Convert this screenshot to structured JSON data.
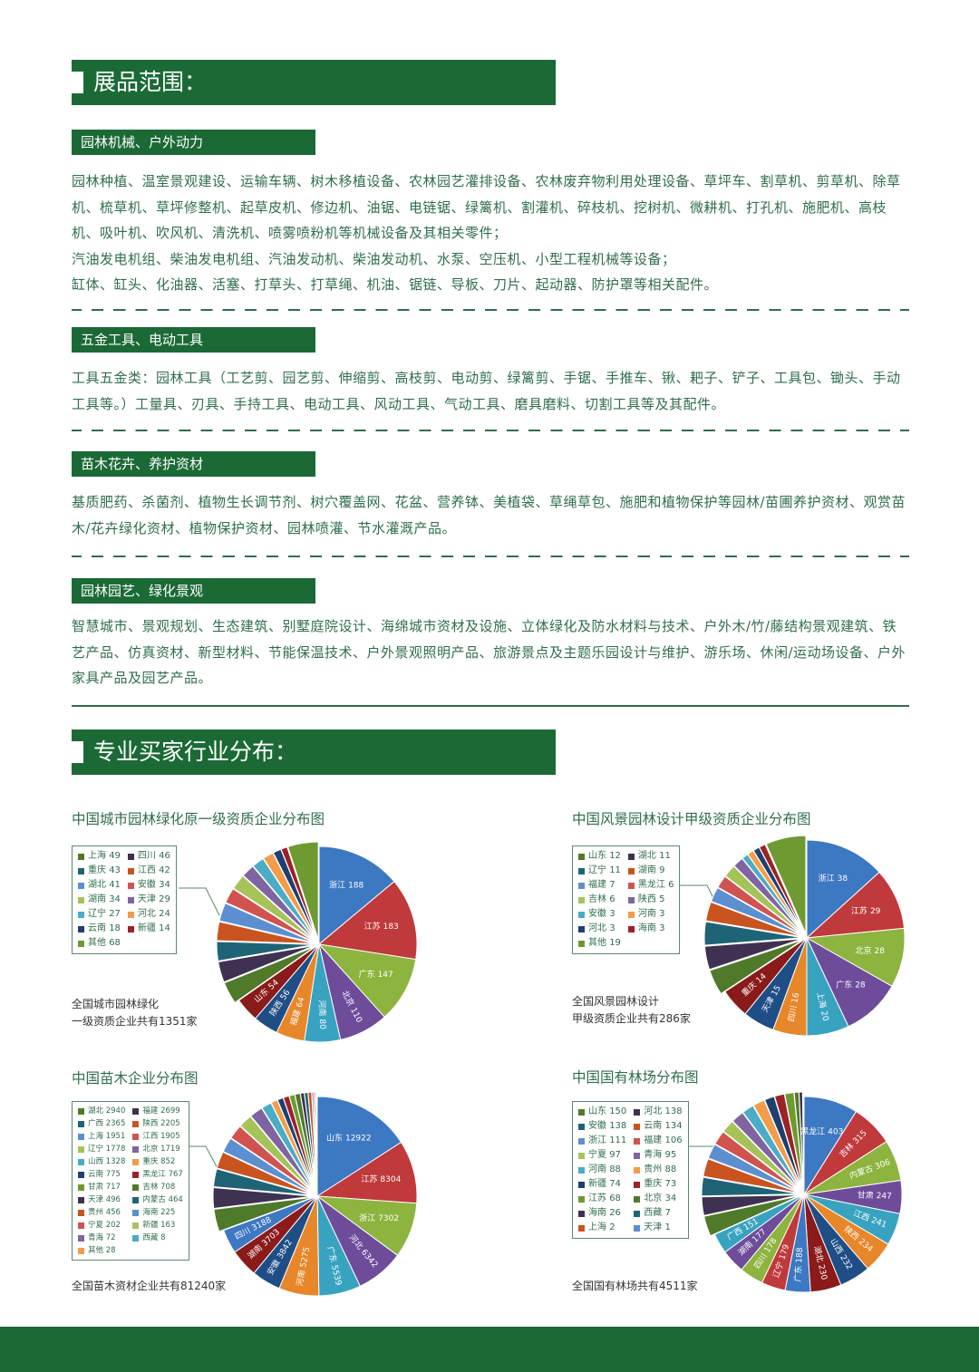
{
  "exhibit_section": {
    "title": "展品范围：",
    "categories": [
      {
        "title": "园林机械、户外动力",
        "lines": [
          "园林种植、温室景观建设、运输车辆、树木移植设备、农林园艺灌排设备、农林废弃物利用处理设备、草坪车、割草机、剪草机、除草机、梳草机、草坪修整机、起草皮机、修边机、油锯、电链锯、绿篱机、割灌机、碎枝机、挖树机、微耕机、打孔机、施肥机、高枝机、吸叶机、吹风机、清洗机、喷雾喷粉机等机械设备及其相关零件；",
          "汽油发电机组、柴油发电机组、汽油发动机、柴油发动机、水泵、空压机、小型工程机械等设备；",
          "缸体、缸头、化油器、活塞、打草头、打草绳、机油、锯链、导板、刀片、起动器、防护罩等相关配件。"
        ]
      },
      {
        "title": "五金工具、电动工具",
        "lines": [
          "工具五金类：园林工具（工艺剪、园艺剪、伸缩剪、高枝剪、电动剪、绿篱剪、手锯、手推车、锹、耙子、铲子、工具包、锄头、手动工具等。）工量具、刃具、手持工具、电动工具、风动工具、气动工具、磨具磨料、切割工具等及其配件。"
        ]
      },
      {
        "title": "苗木花卉、养护资材",
        "lines": [
          "基质肥药、杀菌剂、植物生长调节剂、树穴覆盖网、花盆、营养钵、美植袋、草绳草包、施肥和植物保护等园林/苗圃养护资材、观赏苗木/花卉绿化资材、植物保护资材、园林喷灌、节水灌溉产品。"
        ]
      },
      {
        "title": "园林园艺、绿化景观",
        "lines": [
          "智慧城市、景观规划、生态建筑、别墅庭院设计、海绵城市资材及设施、立体绿化及防水材料与技术、户外木/竹/藤结构景观建筑、铁艺产品、仿真资材、新型材料、节能保温技术、户外景观照明产品、旅游景点及主题乐园设计与维护、游乐场、休闲/运动场设备、户外家具产品及园艺产品。"
        ]
      }
    ]
  },
  "buyer_section": {
    "title": "专业买家行业分布："
  },
  "theme_colors": {
    "brand_green": "#1b6a36",
    "text_green": "#2f6e4c"
  },
  "chart_data": [
    {
      "type": "pie",
      "title": "中国城市园林绿化原一级资质企业分布图",
      "caption": [
        "全国城市园林绿化",
        "一级资质企业共有1351家"
      ],
      "labeled_slices": [
        [
          "浙江",
          188
        ],
        [
          "江苏",
          183
        ],
        [
          "广东",
          147
        ],
        [
          "北京",
          110
        ],
        [
          "河南",
          80
        ],
        [
          "福建",
          64
        ],
        [
          "陕西",
          56
        ],
        [
          "山东",
          54
        ]
      ],
      "legend_slices": [
        [
          "上海",
          49
        ],
        [
          "四川",
          46
        ],
        [
          "重庆",
          43
        ],
        [
          "江西",
          42
        ],
        [
          "湖北",
          41
        ],
        [
          "安徽",
          34
        ],
        [
          "湖南",
          34
        ],
        [
          "天津",
          29
        ],
        [
          "辽宁",
          27
        ],
        [
          "河北",
          24
        ],
        [
          "云南",
          18
        ],
        [
          "新疆",
          14
        ],
        [
          "其他",
          68
        ]
      ]
    },
    {
      "type": "pie",
      "title": "中国风景园林设计甲级资质企业分布图",
      "caption": [
        "全国风景园林设计",
        "甲级资质企业共有286家"
      ],
      "labeled_slices": [
        [
          "浙江",
          38
        ],
        [
          "江苏",
          29
        ],
        [
          "北京",
          28
        ],
        [
          "广东",
          28
        ],
        [
          "上海",
          20
        ],
        [
          "四川",
          16
        ],
        [
          "天津",
          15
        ],
        [
          "重庆",
          14
        ]
      ],
      "legend_slices": [
        [
          "山东",
          12
        ],
        [
          "湖北",
          11
        ],
        [
          "辽宁",
          11
        ],
        [
          "湖南",
          9
        ],
        [
          "福建",
          7
        ],
        [
          "黑龙江",
          6
        ],
        [
          "吉林",
          6
        ],
        [
          "陕西",
          5
        ],
        [
          "安徽",
          3
        ],
        [
          "河南",
          3
        ],
        [
          "河北",
          3
        ],
        [
          "海南",
          3
        ],
        [
          "其他",
          19
        ]
      ]
    },
    {
      "type": "pie",
      "title": "中国苗木企业分布图",
      "caption": [
        "全国苗木资材企业共有81240家"
      ],
      "labeled_slices": [
        [
          "山东",
          12922
        ],
        [
          "江苏",
          8304
        ],
        [
          "浙江",
          7302
        ],
        [
          "河北",
          6342
        ],
        [
          "广东",
          5539
        ],
        [
          "河南",
          5275
        ],
        [
          "安徽",
          3842
        ],
        [
          "湖南",
          3703
        ],
        [
          "四川",
          3188
        ]
      ],
      "legend_slices": [
        [
          "湖北",
          2940
        ],
        [
          "福建",
          2699
        ],
        [
          "广西",
          2365
        ],
        [
          "陕西",
          2205
        ],
        [
          "上海",
          1951
        ],
        [
          "江西",
          1905
        ],
        [
          "辽宁",
          1778
        ],
        [
          "北京",
          1719
        ],
        [
          "山西",
          1328
        ],
        [
          "重庆",
          852
        ],
        [
          "云南",
          775
        ],
        [
          "黑龙江",
          767
        ],
        [
          "甘肃",
          717
        ],
        [
          "吉林",
          708
        ],
        [
          "天津",
          496
        ],
        [
          "内蒙古",
          464
        ],
        [
          "贵州",
          456
        ],
        [
          "海南",
          225
        ],
        [
          "宁夏",
          202
        ],
        [
          "新疆",
          163
        ],
        [
          "青海",
          72
        ],
        [
          "西藏",
          8
        ],
        [
          "其他",
          28
        ]
      ]
    },
    {
      "type": "pie",
      "title": "中国国有林场分布图",
      "caption": [
        "全国国有林场共有4511家"
      ],
      "labeled_slices": [
        [
          "黑龙江",
          403
        ],
        [
          "吉林",
          315
        ],
        [
          "内蒙古",
          306
        ],
        [
          "甘肃",
          247
        ],
        [
          "江西",
          241
        ],
        [
          "陕西",
          234
        ],
        [
          "山西",
          232
        ],
        [
          "湖北",
          230
        ],
        [
          "广东",
          188
        ],
        [
          "辽宁",
          179
        ],
        [
          "四川",
          178
        ],
        [
          "湖南",
          177
        ],
        [
          "广西",
          151
        ]
      ],
      "legend_slices": [
        [
          "山东",
          150
        ],
        [
          "河北",
          138
        ],
        [
          "安徽",
          138
        ],
        [
          "云南",
          134
        ],
        [
          "浙江",
          111
        ],
        [
          "福建",
          106
        ],
        [
          "宁夏",
          97
        ],
        [
          "青海",
          95
        ],
        [
          "河南",
          88
        ],
        [
          "贵州",
          88
        ],
        [
          "新疆",
          74
        ],
        [
          "重庆",
          73
        ],
        [
          "江苏",
          68
        ],
        [
          "北京",
          34
        ],
        [
          "海南",
          26
        ],
        [
          "西藏",
          7
        ],
        [
          "上海",
          2
        ],
        [
          "天津",
          1
        ]
      ]
    }
  ],
  "pie_palette": [
    "#3d78c2",
    "#c0393b",
    "#8db43e",
    "#6e4c9a",
    "#38a3c0",
    "#e8862a",
    "#1f4e86",
    "#8b1a1a",
    "#4f7a2a",
    "#3f3151",
    "#1f6476",
    "#c9541f",
    "#5b8fd0",
    "#d0534f",
    "#a6c35a",
    "#8064a2",
    "#4bacc6",
    "#f39c4a",
    "#1f3f70",
    "#9b2226",
    "#6f9a31"
  ]
}
